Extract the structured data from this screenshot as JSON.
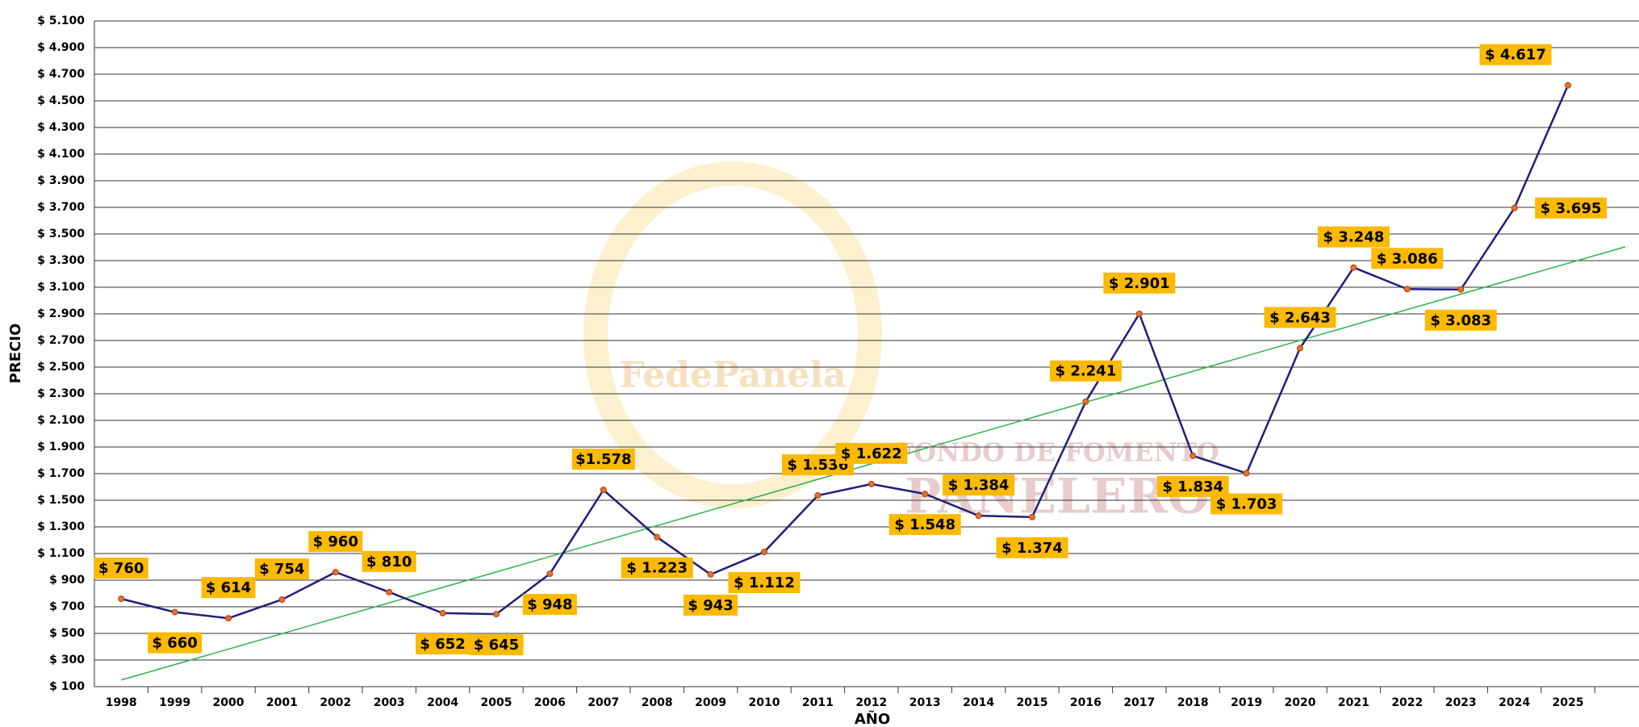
{
  "chart_data": {
    "type": "line",
    "xlabel": "AÑO",
    "ylabel": "PRECIO",
    "watermark": [
      "FedePanela",
      "FONDO DE FOMENTO",
      "PANELERO"
    ],
    "categories": [
      "1998",
      "1999",
      "2000",
      "2001",
      "2002",
      "2003",
      "2004",
      "2005",
      "2006",
      "2007",
      "2008",
      "2009",
      "2010",
      "2011",
      "2012",
      "2013",
      "2014",
      "2015",
      "2016",
      "2017",
      "2018",
      "2019",
      "2020",
      "2021",
      "2022",
      "2023",
      "2024",
      "2025"
    ],
    "series": [
      {
        "name": "PRECIO",
        "color": "#1f1f7a",
        "values": [
          760,
          660,
          614,
          754,
          960,
          810,
          652,
          645,
          948,
          1578,
          1223,
          943,
          1112,
          1536,
          1622,
          1548,
          1384,
          1374,
          2241,
          2901,
          1834,
          1703,
          2643,
          3248,
          3086,
          3083,
          3695,
          4617
        ],
        "value_labels": [
          "$ 760",
          "$ 660",
          "$ 614",
          "$ 754",
          "$ 960",
          "$ 810",
          "$ 652",
          "$ 645",
          "$ 948",
          "$1.578",
          "$ 1.223",
          "$ 943",
          "$ 1.112",
          "$ 1.536",
          "$ 1.622",
          "$ 1.548",
          "$ 1.384",
          "$ 1.374",
          "$ 2.241",
          "$ 2.901",
          "$ 1.834",
          "$ 1.703",
          "$ 2.643",
          "$ 3.248",
          "$ 3.086",
          "$ 3.083",
          "$ 3.695",
          "$ 4.617"
        ]
      }
    ],
    "trendline": {
      "color": "#2db34a",
      "values": [
        150,
        3280
      ]
    },
    "label_color": "#fbb900",
    "ylim": [
      100,
      5100
    ],
    "yticks": [
      {
        "value": 100,
        "label": "$ 100"
      },
      {
        "value": 300,
        "label": "$ 300"
      },
      {
        "value": 500,
        "label": "$ 500"
      },
      {
        "value": 700,
        "label": "$ 700"
      },
      {
        "value": 900,
        "label": "$ 900"
      },
      {
        "value": 1100,
        "label": "$ 1.100"
      },
      {
        "value": 1300,
        "label": "$ 1.300"
      },
      {
        "value": 1500,
        "label": "$ 1.500"
      },
      {
        "value": 1700,
        "label": "$ 1.700"
      },
      {
        "value": 1900,
        "label": "$ 1.900"
      },
      {
        "value": 2100,
        "label": "$ 2.100"
      },
      {
        "value": 2300,
        "label": "$ 2.300"
      },
      {
        "value": 2500,
        "label": "$ 2.500"
      },
      {
        "value": 2700,
        "label": "$ 2.700"
      },
      {
        "value": 2900,
        "label": "$ 2.900"
      },
      {
        "value": 3100,
        "label": "$ 3.100"
      },
      {
        "value": 3300,
        "label": "$ 3.300"
      },
      {
        "value": 3500,
        "label": "$ 3.500"
      },
      {
        "value": 3700,
        "label": "$ 3.700"
      },
      {
        "value": 3900,
        "label": "$ 3.900"
      },
      {
        "value": 4100,
        "label": "$ 4.100"
      },
      {
        "value": 4300,
        "label": "$ 4.300"
      },
      {
        "value": 4500,
        "label": "$ 4.500"
      },
      {
        "value": 4700,
        "label": "$ 4.700"
      },
      {
        "value": 4900,
        "label": "$ 4.900"
      },
      {
        "value": 5100,
        "label": "$ 5.100"
      }
    ],
    "grid": true
  }
}
